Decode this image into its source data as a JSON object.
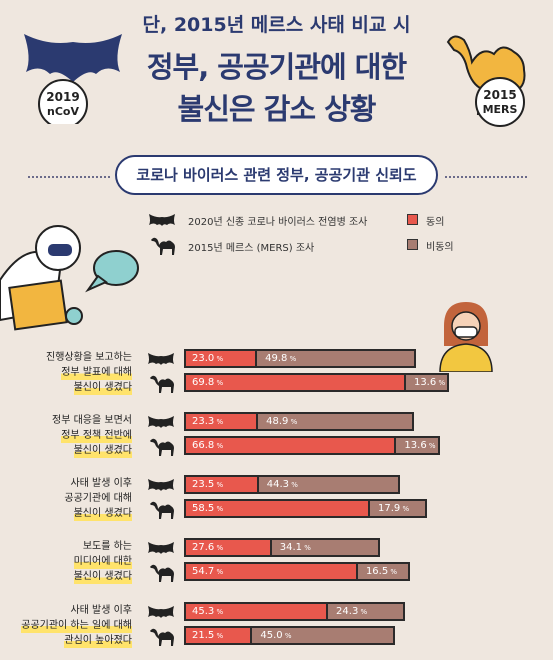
{
  "header": {
    "supertitle": "단, 2015년 메르스 사태 비교 시",
    "title_line1": "정부, 공공기관에 대한",
    "title_line2": "불신은 감소 상황",
    "badge_left": [
      "2019",
      "nCoV"
    ],
    "badge_right": [
      "2015",
      "MERS"
    ]
  },
  "colors": {
    "agree": "#e8584d",
    "disagree": "#a87d72",
    "title": "#2b3a70",
    "highlight": "#ffe36b"
  },
  "chart_data": {
    "type": "bar",
    "title": "코로나 바이러스 관련 정부, 공공기관 신뢰도",
    "unit": "%",
    "legend": {
      "icons": [
        {
          "icon": "bat-icon",
          "label": "2020년 신종 코로나 바이러스 전염병 조사"
        },
        {
          "icon": "camel-icon",
          "label": "2015년 메르스 (MERS) 조사"
        }
      ],
      "colors": [
        {
          "label": "동의",
          "color": "#e8584d"
        },
        {
          "label": "비동의",
          "color": "#a87d72"
        }
      ]
    },
    "groups": [
      {
        "question": [
          "진행상황을 보고하는",
          "정부 발표에 대해",
          "불신이 생겼다"
        ],
        "highlight": [
          1,
          2
        ],
        "covid": {
          "agree": 23.0,
          "disagree": 49.8
        },
        "mers": {
          "agree": 69.8,
          "disagree": 13.6
        }
      },
      {
        "question": [
          "정부 대응을 보면서",
          "정부 정책 전반에",
          "불신이 생겼다"
        ],
        "highlight": [
          1,
          2
        ],
        "covid": {
          "agree": 23.3,
          "disagree": 48.9
        },
        "mers": {
          "agree": 66.8,
          "disagree": 13.6
        }
      },
      {
        "question": [
          "사태 발생 이후",
          "공공기관에 대해",
          "불신이 생겼다"
        ],
        "highlight": [
          2
        ],
        "covid": {
          "agree": 23.5,
          "disagree": 44.3
        },
        "mers": {
          "agree": 58.5,
          "disagree": 17.9
        }
      },
      {
        "question": [
          "보도를 하는",
          "미디어에 대한",
          "불신이 생겼다"
        ],
        "highlight": [
          1,
          2
        ],
        "covid": {
          "agree": 27.6,
          "disagree": 34.1
        },
        "mers": {
          "agree": 54.7,
          "disagree": 16.5
        }
      },
      {
        "question": [
          "사태 발생 이후",
          "공공기관이 하는 일에 대해",
          "관심이 높아졌다"
        ],
        "highlight": [
          1,
          2
        ],
        "covid": {
          "agree": 45.3,
          "disagree": 24.3
        },
        "mers": {
          "agree": 21.5,
          "disagree": 45.0
        }
      }
    ]
  }
}
